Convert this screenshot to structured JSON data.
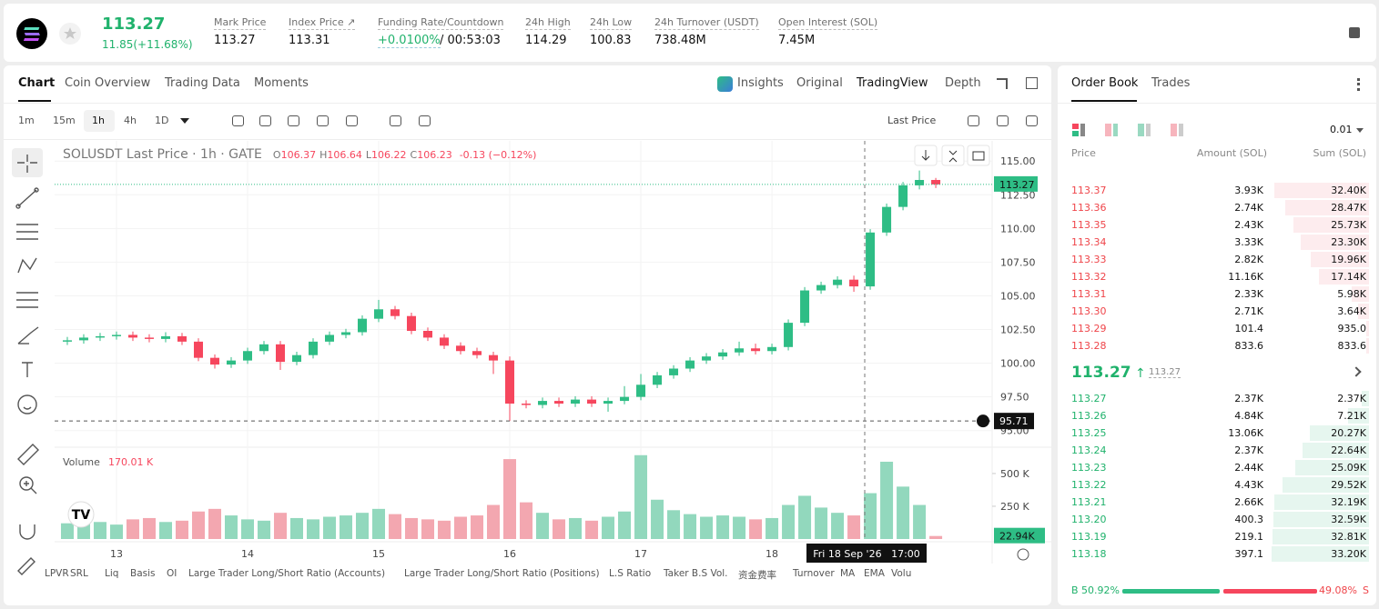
{
  "header": {
    "price": "113.27",
    "change": "11.85(+11.68%)",
    "stats": [
      {
        "label": "Mark Price",
        "value": "113.27"
      },
      {
        "label": "Index Price ↗",
        "value": "113.31"
      },
      {
        "label": "Funding Rate/Countdown",
        "value": "+0.0100%",
        "extra": "/ 00:53:03"
      },
      {
        "label": "24h High",
        "value": "114.29"
      },
      {
        "label": "24h Low",
        "value": "100.83"
      },
      {
        "label": "24h Turnover (USDT)",
        "value": "738.48M"
      },
      {
        "label": "Open Interest (SOL)",
        "value": "7.45M"
      }
    ]
  },
  "tabs": [
    "Chart",
    "Coin Overview",
    "Trading Data",
    "Moments"
  ],
  "view_tabs": [
    "Insights",
    "Original",
    "TradingView",
    "Depth"
  ],
  "intervals": [
    "1m",
    "15m",
    "1h",
    "4h",
    "1D"
  ],
  "price_type": "Last Price",
  "indicators": [
    "LPVR",
    "SRL",
    "Liq",
    "Basis",
    "OI",
    "Large Trader Long/Short Ratio (Accounts)",
    "Large Trader Long/Short Ratio (Positions)",
    "L.S Ratio",
    "Taker B.S Vol.",
    "资金费率",
    "Turnover",
    "MA",
    "EMA",
    "Volu"
  ],
  "chart_data": {
    "type": "candlestick",
    "title": "SOLUSDT Last Price · 1h · GATE",
    "legend": [
      {
        "key": "O",
        "value": "106.37"
      },
      {
        "key": "H",
        "value": "106.64"
      },
      {
        "key": "L",
        "value": "106.22"
      },
      {
        "key": "C",
        "value": "106.23"
      }
    ],
    "legend_change": "-0.13 (−0.12%)",
    "up_color": "#2ebd85",
    "down_color": "#f6465d",
    "up_volume_color": "#92d8bd",
    "down_volume_color": "#f3a7b0",
    "x": [
      12.625,
      12.75,
      12.875,
      13,
      13.125,
      13.25,
      13.375,
      13.5,
      13.625,
      13.75,
      13.875,
      14,
      14.125,
      14.25,
      14.375,
      14.5,
      14.625,
      14.75,
      14.875,
      15,
      15.125,
      15.25,
      15.375,
      15.5,
      15.625,
      15.75,
      15.875,
      16,
      16.125,
      16.25,
      16.375,
      16.5,
      16.625,
      16.75,
      16.875,
      17,
      17.125,
      17.25,
      17.375,
      17.5,
      17.625,
      17.75,
      17.875,
      18,
      18.125,
      18.25,
      18.375,
      18.5,
      18.625,
      18.75,
      18.875,
      19,
      19.125,
      19.25
    ],
    "open": [
      101.6,
      101.7,
      101.9,
      102.0,
      102.1,
      101.9,
      101.8,
      102.0,
      101.6,
      100.4,
      99.9,
      100.2,
      100.9,
      101.4,
      100.1,
      100.6,
      101.6,
      102.1,
      102.3,
      103.3,
      104.0,
      103.5,
      102.4,
      101.9,
      101.3,
      100.9,
      100.6,
      100.2,
      97.0,
      96.9,
      97.2,
      97.0,
      97.3,
      97.0,
      97.2,
      97.5,
      98.4,
      99.1,
      99.6,
      100.2,
      100.5,
      100.8,
      101.1,
      100.9,
      101.2,
      103.0,
      105.4,
      105.8,
      106.2,
      105.7,
      109.7,
      111.6,
      113.2,
      113.6
    ],
    "high": [
      101.95,
      102.15,
      102.25,
      102.35,
      102.35,
      102.15,
      102.3,
      102.25,
      101.85,
      100.65,
      100.45,
      101.15,
      101.65,
      101.65,
      100.85,
      101.85,
      102.35,
      102.55,
      103.55,
      104.7,
      104.25,
      103.75,
      102.65,
      102.15,
      101.55,
      101.15,
      100.85,
      100.5,
      97.25,
      97.45,
      97.45,
      97.55,
      97.55,
      97.45,
      98.3,
      99.2,
      99.35,
      99.85,
      100.45,
      100.75,
      101.05,
      101.6,
      101.45,
      101.45,
      103.25,
      105.65,
      106.05,
      106.45,
      106.5,
      109.95,
      111.85,
      113.45,
      114.3,
      113.75
    ],
    "low": [
      101.35,
      101.45,
      101.65,
      101.75,
      101.65,
      101.55,
      101.55,
      101.35,
      100.15,
      99.6,
      99.65,
      99.95,
      100.65,
      99.5,
      99.85,
      100.35,
      101.35,
      101.85,
      102.05,
      103.05,
      103.25,
      102.15,
      101.65,
      101.05,
      100.65,
      100.35,
      99.2,
      95.71,
      96.65,
      96.65,
      96.75,
      96.75,
      96.75,
      96.4,
      96.95,
      97.25,
      98.15,
      98.85,
      99.35,
      99.95,
      100.25,
      100.55,
      100.65,
      100.65,
      100.95,
      102.75,
      105.15,
      105.55,
      105.3,
      105.45,
      109.45,
      111.35,
      112.9,
      113.0
    ],
    "close": [
      101.7,
      101.9,
      102.0,
      102.1,
      101.9,
      101.8,
      102.0,
      101.6,
      100.4,
      99.9,
      100.2,
      100.9,
      101.4,
      100.1,
      100.6,
      101.6,
      102.1,
      102.3,
      103.3,
      104.0,
      103.5,
      102.4,
      101.9,
      101.3,
      100.9,
      100.6,
      100.2,
      97.0,
      96.9,
      97.2,
      97.0,
      97.3,
      97.0,
      97.2,
      97.5,
      98.4,
      99.1,
      99.6,
      100.2,
      100.5,
      100.8,
      101.1,
      100.9,
      101.2,
      103.0,
      105.4,
      105.8,
      106.2,
      105.7,
      109.7,
      111.6,
      113.2,
      113.6,
      113.27
    ],
    "volume": [
      120,
      140,
      130,
      110,
      150,
      160,
      130,
      140,
      210,
      230,
      180,
      150,
      140,
      200,
      160,
      150,
      170,
      180,
      200,
      230,
      190,
      160,
      150,
      140,
      170,
      180,
      260,
      610,
      280,
      200,
      150,
      160,
      140,
      170,
      210,
      640,
      300,
      220,
      190,
      170,
      180,
      170,
      150,
      160,
      260,
      330,
      240,
      200,
      180,
      350,
      590,
      400,
      260,
      22.94
    ],
    "xlim": [
      12.528,
      19.68
    ],
    "xticks": [
      13,
      14,
      15,
      16,
      17,
      18
    ],
    "ylim": [
      93.9,
      116.5
    ],
    "yticks": [
      {
        "value": 95,
        "label": "95.00"
      },
      {
        "value": 97.5,
        "label": "97.50"
      },
      {
        "value": 100,
        "label": "100.00"
      },
      {
        "value": 102.5,
        "label": "102.50"
      },
      {
        "value": 105,
        "label": "105.00"
      },
      {
        "value": 107.5,
        "label": "107.50"
      },
      {
        "value": 110,
        "label": "110.00"
      },
      {
        "value": 112.5,
        "label": "112.50"
      },
      {
        "value": 115,
        "label": "115.00"
      }
    ],
    "volume_title": "Volume",
    "volume_value": "170.01 K",
    "volume_ylim": [
      0,
      680
    ],
    "volume_yticks": [
      {
        "value": 250,
        "label": "250 K"
      },
      {
        "value": 500,
        "label": "500 K"
      }
    ],
    "last_price": 113.27,
    "last_volume": {
      "value": 22.94,
      "label": "22.94K"
    },
    "crosshair": {
      "price": 95.71,
      "x": 18.708,
      "time": "Fri 18 Sep '26   17:00"
    }
  },
  "order_book": {
    "tabs": [
      "Order Book",
      "Trades"
    ],
    "precision": "0.01",
    "columns": [
      "Price",
      "Amount (SOL)",
      "Sum (SOL)"
    ],
    "asks": [
      [
        "113.37",
        "3.93K",
        "32.40K"
      ],
      [
        "113.36",
        "2.74K",
        "28.47K"
      ],
      [
        "113.35",
        "2.43K",
        "25.73K"
      ],
      [
        "113.34",
        "3.33K",
        "23.30K"
      ],
      [
        "113.33",
        "2.82K",
        "19.96K"
      ],
      [
        "113.32",
        "11.16K",
        "17.14K"
      ],
      [
        "113.31",
        "2.33K",
        "5.98K"
      ],
      [
        "113.30",
        "2.71K",
        "3.64K"
      ],
      [
        "113.29",
        "101.4",
        "935.0"
      ],
      [
        "113.28",
        "833.6",
        "833.6"
      ]
    ],
    "mid_price": "113.27",
    "mark_price": "113.27",
    "bids": [
      [
        "113.27",
        "2.37K",
        "2.37K"
      ],
      [
        "113.26",
        "4.84K",
        "7.21K"
      ],
      [
        "113.25",
        "13.06K",
        "20.27K"
      ],
      [
        "113.24",
        "2.37K",
        "22.64K"
      ],
      [
        "113.23",
        "2.44K",
        "25.09K"
      ],
      [
        "113.22",
        "4.43K",
        "29.52K"
      ],
      [
        "113.21",
        "2.66K",
        "32.19K"
      ],
      [
        "113.20",
        "400.3",
        "32.59K"
      ],
      [
        "113.19",
        "219.1",
        "32.81K"
      ],
      [
        "113.18",
        "397.1",
        "33.20K"
      ]
    ],
    "buy": {
      "value": 50.92,
      "label": "50.92%"
    },
    "sell": {
      "value": 49.08,
      "label": "49.08%"
    },
    "buy_key": "B",
    "sell_key": "S"
  }
}
